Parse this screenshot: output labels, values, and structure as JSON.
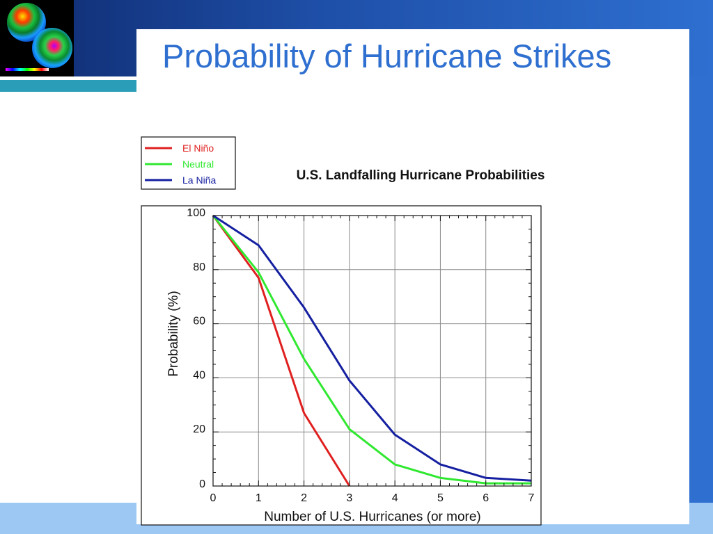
{
  "slide": {
    "title": "Probability of Hurricane Strikes"
  },
  "colors": {
    "title": "#2e6fd0",
    "band_dark": "#0f2a6e",
    "band_light": "#2e6fd0",
    "teal": "#2a9db8",
    "bottom": "#9ec8f4"
  },
  "chart_data": {
    "type": "line",
    "title": "U.S. Landfalling Hurricane Probabilities",
    "xlabel": "Number of U.S. Hurricanes (or more)",
    "ylabel": "Probability (%)",
    "xlim": [
      0,
      7
    ],
    "ylim": [
      0,
      100
    ],
    "x_ticks": [
      0,
      1,
      2,
      3,
      4,
      5,
      6,
      7
    ],
    "y_ticks": [
      0,
      20,
      40,
      60,
      80,
      100
    ],
    "grid": true,
    "legend_position": "top-left",
    "series": [
      {
        "name": "El Niño",
        "color": "#e02020",
        "x": [
          0,
          1,
          2,
          3
        ],
        "values": [
          100,
          77,
          27,
          0
        ]
      },
      {
        "name": "Neutral",
        "color": "#30e830",
        "x": [
          0,
          1,
          2,
          3,
          4,
          5,
          6,
          7
        ],
        "values": [
          100,
          79,
          47,
          21,
          8,
          3,
          1,
          1
        ]
      },
      {
        "name": "La Niña",
        "color": "#1520a0",
        "x": [
          0,
          1,
          2,
          3,
          4,
          5,
          6,
          7
        ],
        "values": [
          100,
          89,
          66,
          39,
          19,
          8,
          3,
          2
        ]
      }
    ]
  }
}
